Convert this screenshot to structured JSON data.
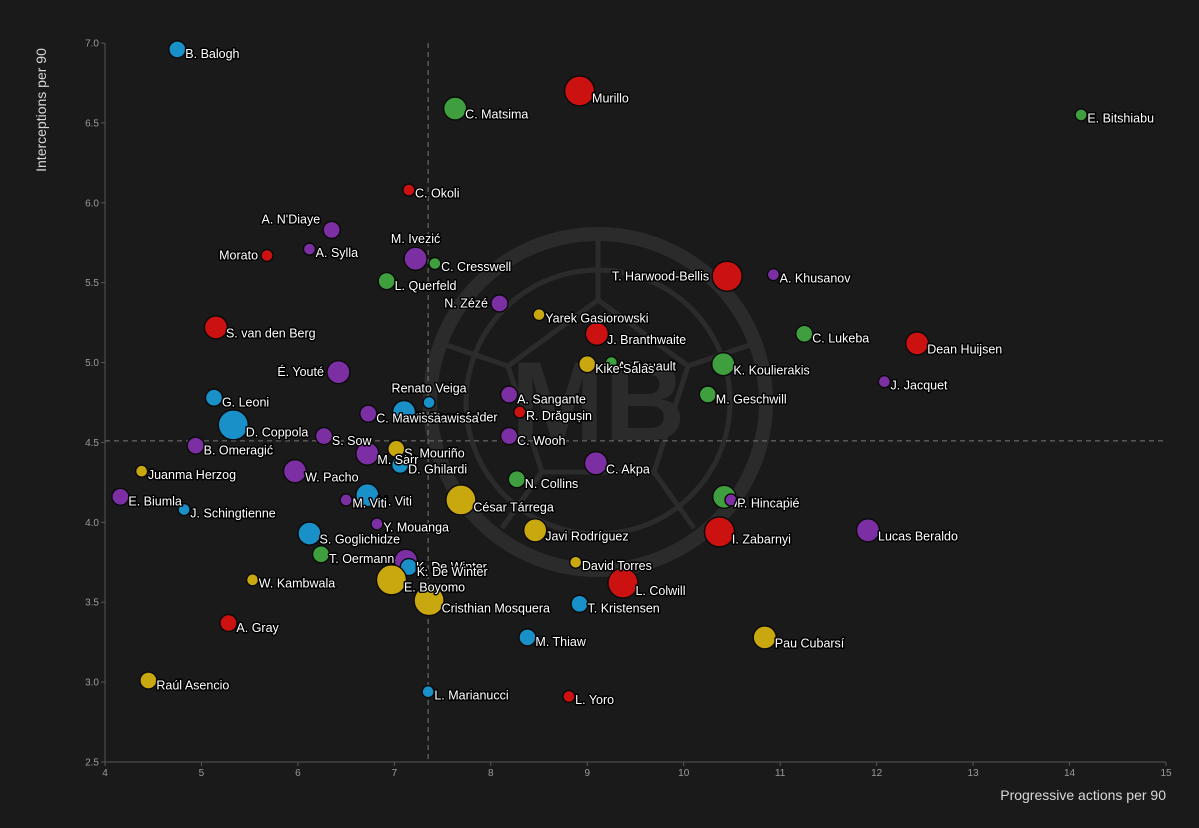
{
  "chart_data": {
    "type": "scatter",
    "xlabel": "Progressive actions per 90",
    "ylabel": "Interceptions per 90",
    "xlim": [
      4,
      15
    ],
    "ylim": [
      2.5,
      7.0
    ],
    "xticks": [
      "4",
      "5",
      "6",
      "7",
      "8",
      "9",
      "10",
      "11",
      "12",
      "13",
      "14",
      "15"
    ],
    "yticks": [
      "2.5",
      "3.0",
      "3.5",
      "4.0",
      "4.5",
      "5.0",
      "5.5",
      "6.0",
      "6.5",
      "7.0"
    ],
    "reference_lines": {
      "x": 7.35,
      "y": 4.51
    },
    "grid": false,
    "watermark": "MB",
    "colors": {
      "red": "#cc1111",
      "green": "#3f9f3f",
      "blue": "#1991c8",
      "purple": "#7b2fa3",
      "yellow": "#c9a70f"
    },
    "points": [
      {
        "name": "B. Balogh",
        "x": 4.75,
        "y": 6.96,
        "size": "m",
        "color": "blue"
      },
      {
        "name": "Murillo",
        "x": 8.92,
        "y": 6.7,
        "size": "xl",
        "color": "red"
      },
      {
        "name": "C. Matsima",
        "x": 7.63,
        "y": 6.59,
        "size": "l",
        "color": "green"
      },
      {
        "name": "E. Bitshiabu",
        "x": 14.12,
        "y": 6.55,
        "size": "s",
        "color": "green"
      },
      {
        "name": "C. Okoli",
        "x": 7.15,
        "y": 6.08,
        "size": "s",
        "color": "red"
      },
      {
        "name": "A. N'Diaye",
        "x": 6.35,
        "y": 5.83,
        "size": "m",
        "color": "purple"
      },
      {
        "name": "A. Sylla",
        "x": 6.12,
        "y": 5.71,
        "size": "s",
        "color": "purple"
      },
      {
        "name": "Morato",
        "x": 5.68,
        "y": 5.67,
        "size": "s",
        "color": "red"
      },
      {
        "name": "M. Ivezić",
        "x": 7.22,
        "y": 5.65,
        "size": "l",
        "color": "purple"
      },
      {
        "name": "C. Cresswell",
        "x": 7.42,
        "y": 5.62,
        "size": "s",
        "color": "green"
      },
      {
        "name": "T. Harwood-Bellis",
        "x": 10.45,
        "y": 5.54,
        "size": "xl",
        "color": "red"
      },
      {
        "name": "A. Khusanov",
        "x": 10.93,
        "y": 5.55,
        "size": "s",
        "color": "purple"
      },
      {
        "name": "L. Querfeld",
        "x": 6.92,
        "y": 5.51,
        "size": "m",
        "color": "green"
      },
      {
        "name": "N. Zézé",
        "x": 8.09,
        "y": 5.37,
        "size": "m",
        "color": "purple"
      },
      {
        "name": "Yarek Gasiorowski",
        "x": 8.5,
        "y": 5.3,
        "size": "s",
        "color": "yellow"
      },
      {
        "name": "S. van den Berg",
        "x": 5.15,
        "y": 5.22,
        "size": "l",
        "color": "red"
      },
      {
        "name": "J. Branthwaite",
        "x": 9.1,
        "y": 5.18,
        "size": "l",
        "color": "red"
      },
      {
        "name": "C. Lukeba",
        "x": 11.25,
        "y": 5.18,
        "size": "m",
        "color": "green"
      },
      {
        "name": "Dean Huijsen",
        "x": 12.42,
        "y": 5.12,
        "size": "l",
        "color": "red"
      },
      {
        "name": "A. Rouault",
        "x": 9.25,
        "y": 5.0,
        "size": "s",
        "color": "green"
      },
      {
        "name": "Kike Salas",
        "x": 9.0,
        "y": 4.99,
        "size": "m",
        "color": "yellow"
      },
      {
        "name": "K. Koulierakis",
        "x": 10.41,
        "y": 4.99,
        "size": "l",
        "color": "green"
      },
      {
        "name": "É. Youté",
        "x": 6.42,
        "y": 4.94,
        "size": "l",
        "color": "purple"
      },
      {
        "name": "J. Jacquet",
        "x": 12.08,
        "y": 4.88,
        "size": "s",
        "color": "purple"
      },
      {
        "name": "M. Geschwill",
        "x": 10.25,
        "y": 4.8,
        "size": "m",
        "color": "green"
      },
      {
        "name": "A. Sangante",
        "x": 8.19,
        "y": 4.8,
        "size": "m",
        "color": "purple"
      },
      {
        "name": "G. Leoni",
        "x": 5.13,
        "y": 4.78,
        "size": "m",
        "color": "blue"
      },
      {
        "name": "Renato Veiga",
        "x": 7.36,
        "y": 4.75,
        "size": "s",
        "color": "blue"
      },
      {
        "name": "R. Drăgușin",
        "x": 8.3,
        "y": 4.69,
        "size": "s",
        "color": "red"
      },
      {
        "name": "T. Rosenfelder",
        "x": 7.17,
        "y": 4.68,
        "size": "s",
        "color": "green"
      },
      {
        "name": "C. Mawissa",
        "x": 7.1,
        "y": 4.69,
        "size": "l",
        "color": "blue"
      },
      {
        "name": "C. Mawissa",
        "x": 6.73,
        "y": 4.68,
        "size": "m",
        "color": "purple"
      },
      {
        "name": "D. Coppola",
        "x": 5.33,
        "y": 4.61,
        "size": "xl",
        "color": "blue"
      },
      {
        "name": "S. Sow",
        "x": 6.27,
        "y": 4.54,
        "size": "m",
        "color": "purple"
      },
      {
        "name": "C. Wooh",
        "x": 8.19,
        "y": 4.54,
        "size": "m",
        "color": "purple"
      },
      {
        "name": "B. Omeragić",
        "x": 4.94,
        "y": 4.48,
        "size": "m",
        "color": "purple"
      },
      {
        "name": "S. Mouriño",
        "x": 7.02,
        "y": 4.46,
        "size": "m",
        "color": "yellow"
      },
      {
        "name": "M. Sarr",
        "x": 6.72,
        "y": 4.43,
        "size": "l",
        "color": "purple"
      },
      {
        "name": "C. Akpa",
        "x": 9.09,
        "y": 4.37,
        "size": "l",
        "color": "purple"
      },
      {
        "name": "D. Ghilardi",
        "x": 7.06,
        "y": 4.36,
        "size": "m",
        "color": "blue"
      },
      {
        "name": "W. Pacho",
        "x": 5.97,
        "y": 4.32,
        "size": "l",
        "color": "purple"
      },
      {
        "name": "Juanma Herzog",
        "x": 4.38,
        "y": 4.32,
        "size": "s",
        "color": "yellow"
      },
      {
        "name": "N. Collins",
        "x": 8.27,
        "y": 4.27,
        "size": "m",
        "color": "green"
      },
      {
        "name": "M. Viti",
        "x": 6.72,
        "y": 4.17,
        "size": "l",
        "color": "blue"
      },
      {
        "name": "M. Viti",
        "x": 6.5,
        "y": 4.14,
        "size": "s",
        "color": "purple"
      },
      {
        "name": "E. Biumla",
        "x": 4.16,
        "y": 4.16,
        "size": "m",
        "color": "purple"
      },
      {
        "name": "César Tárrega",
        "x": 7.69,
        "y": 4.14,
        "size": "xl",
        "color": "yellow"
      },
      {
        "name": "A. Rouault",
        "x": 10.42,
        "y": 4.16,
        "size": "l",
        "color": "green"
      },
      {
        "name": "P. Hincapié",
        "x": 10.49,
        "y": 4.14,
        "size": "s",
        "color": "purple"
      },
      {
        "name": "J. Schingtienne",
        "x": 4.82,
        "y": 4.08,
        "size": "s",
        "color": "blue"
      },
      {
        "name": "Y. Mouanga",
        "x": 6.82,
        "y": 3.99,
        "size": "s",
        "color": "purple"
      },
      {
        "name": "Javi Rodríguez",
        "x": 8.46,
        "y": 3.95,
        "size": "l",
        "color": "yellow"
      },
      {
        "name": "Lucas Beraldo",
        "x": 11.91,
        "y": 3.95,
        "size": "l",
        "color": "purple"
      },
      {
        "name": "I. Zabarnyi",
        "x": 10.37,
        "y": 3.94,
        "size": "xl",
        "color": "red"
      },
      {
        "name": "S. Goglichidze",
        "x": 6.12,
        "y": 3.93,
        "size": "l",
        "color": "blue"
      },
      {
        "name": "T. Oermann",
        "x": 6.24,
        "y": 3.8,
        "size": "m",
        "color": "green"
      },
      {
        "name": "K. De Winter",
        "x": 7.12,
        "y": 3.76,
        "size": "l",
        "color": "purple"
      },
      {
        "name": "K. De Winter",
        "x": 7.15,
        "y": 3.72,
        "size": "m",
        "color": "blue"
      },
      {
        "name": "David Torres",
        "x": 8.88,
        "y": 3.75,
        "size": "s",
        "color": "yellow"
      },
      {
        "name": "W. Kambwala",
        "x": 5.53,
        "y": 3.64,
        "size": "s",
        "color": "yellow"
      },
      {
        "name": "E. Boyomo",
        "x": 6.97,
        "y": 3.64,
        "size": "xl",
        "color": "yellow"
      },
      {
        "name": "L. Colwill",
        "x": 9.37,
        "y": 3.62,
        "size": "xl",
        "color": "red"
      },
      {
        "name": "Cristhian Mosquera",
        "x": 7.36,
        "y": 3.51,
        "size": "xl",
        "color": "yellow"
      },
      {
        "name": "T. Kristensen",
        "x": 8.92,
        "y": 3.49,
        "size": "m",
        "color": "blue"
      },
      {
        "name": "A. Gray",
        "x": 5.28,
        "y": 3.37,
        "size": "m",
        "color": "red"
      },
      {
        "name": "M. Thiaw",
        "x": 8.38,
        "y": 3.28,
        "size": "m",
        "color": "blue"
      },
      {
        "name": "Pau Cubarsí",
        "x": 10.84,
        "y": 3.28,
        "size": "l",
        "color": "yellow"
      },
      {
        "name": "Raúl Asencio",
        "x": 4.45,
        "y": 3.01,
        "size": "m",
        "color": "yellow"
      },
      {
        "name": "L. Marianucci",
        "x": 7.35,
        "y": 2.94,
        "size": "s",
        "color": "blue"
      },
      {
        "name": "L. Yoro",
        "x": 8.81,
        "y": 2.91,
        "size": "s",
        "color": "red"
      }
    ]
  }
}
